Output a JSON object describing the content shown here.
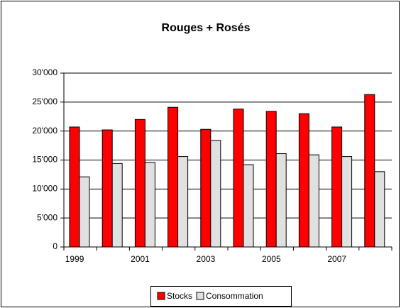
{
  "chart_data": {
    "type": "bar",
    "title": "Rouges + Rosés",
    "categories": [
      "1999",
      null,
      "2001",
      null,
      "2003",
      null,
      "2005",
      null,
      "2007",
      null
    ],
    "series": [
      {
        "name": "Stocks",
        "color": "#ff0000",
        "values": [
          20700,
          20200,
          22000,
          24100,
          20300,
          23800,
          23400,
          23000,
          20700,
          26300
        ]
      },
      {
        "name": "Consommation",
        "color": "#e0e0e0",
        "values": [
          12100,
          14400,
          14600,
          15600,
          18400,
          14200,
          16100,
          15900,
          15600,
          13000
        ]
      }
    ],
    "ylim": [
      0,
      30000
    ],
    "yticks": [
      0,
      {
        "value": 5000,
        "label": "5'000"
      },
      {
        "value": 10000,
        "label": "10'000"
      },
      {
        "value": 15000,
        "label": "15'000"
      },
      {
        "value": 20000,
        "label": "20'000"
      },
      {
        "value": 25000,
        "label": "25'000"
      },
      {
        "value": 30000,
        "label": "30'000"
      }
    ],
    "grid": true,
    "legend": "bottom"
  }
}
